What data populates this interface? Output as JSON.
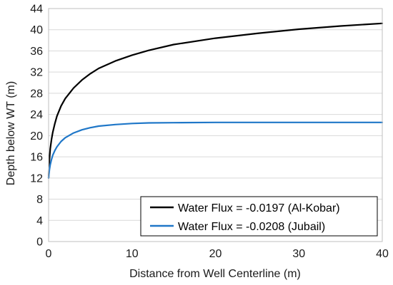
{
  "chart_data": {
    "type": "line",
    "title": "",
    "xlabel": "Distance from Well Centerline  (m)",
    "ylabel": "Depth below WT  (m)",
    "xlim": [
      0,
      40
    ],
    "ylim": [
      0,
      44
    ],
    "xticks": [
      0,
      10,
      20,
      30,
      40
    ],
    "yticks": [
      0,
      4,
      8,
      12,
      16,
      20,
      24,
      28,
      32,
      36,
      40,
      44
    ],
    "grid": "horizontal",
    "legend_position": "bottom-right",
    "series": [
      {
        "name": "Water Flux = -0.0197 (Al-Kobar)",
        "color": "#000000",
        "x": [
          0,
          0.1,
          0.2,
          0.35,
          0.5,
          0.75,
          1,
          1.5,
          2,
          3,
          4,
          5,
          6,
          8,
          10,
          12,
          15,
          20,
          25,
          30,
          35,
          40
        ],
        "y": [
          12,
          15.5,
          17.5,
          19.3,
          20.6,
          22.3,
          23.7,
          25.6,
          27,
          29,
          30.5,
          31.7,
          32.7,
          34.1,
          35.2,
          36.1,
          37.2,
          38.4,
          39.3,
          40.1,
          40.7,
          41.2
        ]
      },
      {
        "name": "Water Flux = -0.0208 (Jubail)",
        "color": "#1f77c8",
        "x": [
          0,
          0.1,
          0.2,
          0.35,
          0.5,
          0.75,
          1,
          1.5,
          2,
          3,
          4,
          5,
          6,
          8,
          10,
          12,
          15,
          20,
          25,
          30,
          35,
          40
        ],
        "y": [
          12,
          13.6,
          14.5,
          15.5,
          16.3,
          17.2,
          17.9,
          18.9,
          19.6,
          20.5,
          21.1,
          21.5,
          21.8,
          22.1,
          22.3,
          22.4,
          22.45,
          22.5,
          22.5,
          22.5,
          22.5,
          22.5
        ]
      }
    ]
  }
}
